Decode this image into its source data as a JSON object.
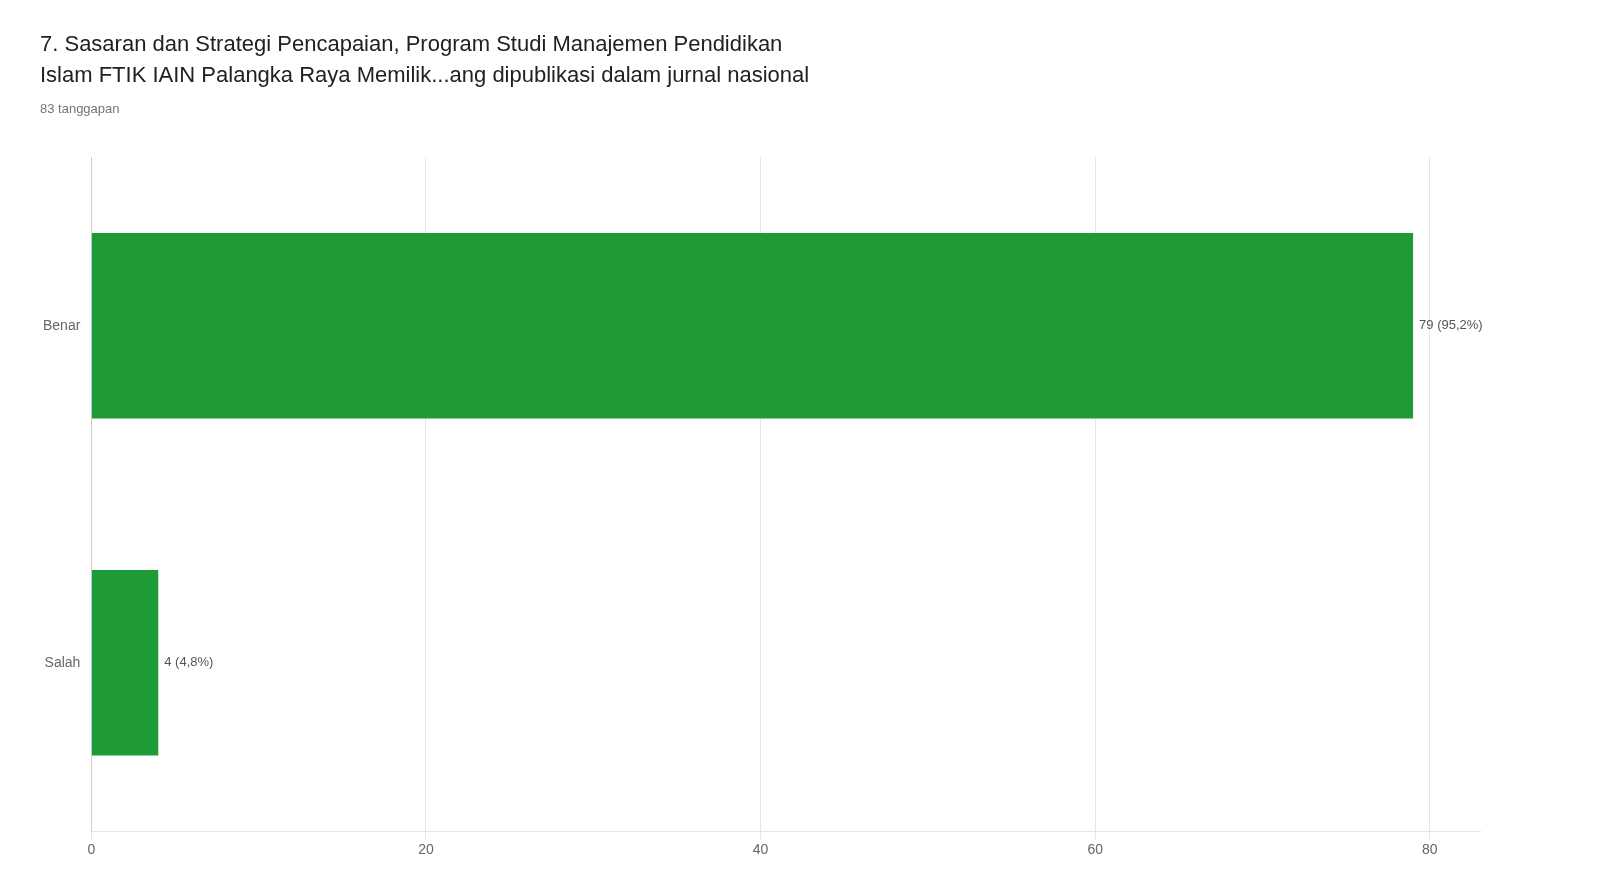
{
  "chart_data": {
    "type": "bar",
    "orientation": "horizontal",
    "title": "7. Sasaran dan Strategi Pencapaian, Program Studi Manajemen Pendidikan\nIslam FTIK IAIN Palangka Raya Memilik...ang dipublikasi dalam jurnal nasional",
    "subtitle": "83 tanggapan",
    "categories": [
      "Salah",
      "Benar"
    ],
    "values": [
      4,
      79
    ],
    "value_labels": [
      "4 (4,8%)",
      "79 (95,2%)"
    ],
    "data_labels": true,
    "color": "#1e9b37",
    "xlim": [
      0,
      83
    ],
    "xticks": [
      0,
      20,
      40,
      60,
      80
    ],
    "grid": true
  }
}
